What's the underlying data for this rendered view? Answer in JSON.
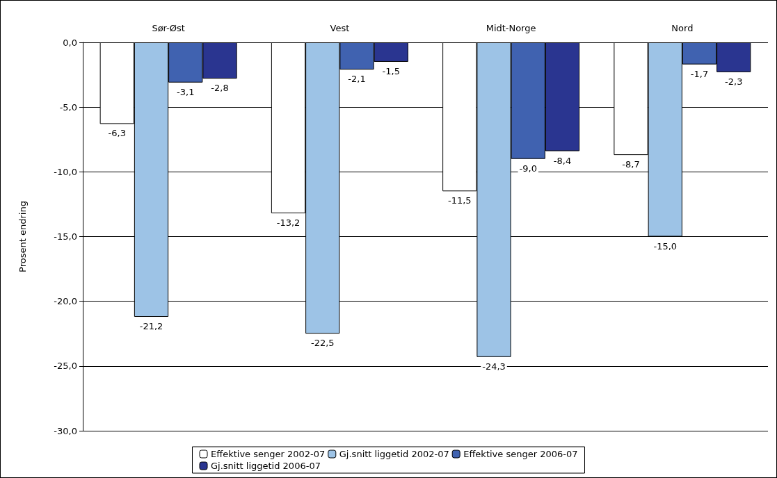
{
  "chart_data": {
    "type": "bar",
    "ylabel": "Prosent endring",
    "categories": [
      "Sør-Øst",
      "Vest",
      "Midt-Norge",
      "Nord"
    ],
    "series": [
      {
        "name": "Effektive senger 2002-07",
        "color": "#ffffff",
        "values": [
          -6.3,
          -13.2,
          -11.5,
          -8.7
        ],
        "value_labels": [
          "-6,3",
          "-13,2",
          "-11,5",
          "-8,7"
        ]
      },
      {
        "name": "Gj.snitt liggetid 2002-07",
        "color": "#9dc3e6",
        "values": [
          -21.2,
          -22.5,
          -24.3,
          -15.0
        ],
        "value_labels": [
          "-21,2",
          "-22,5",
          "-24,3",
          "-15,0"
        ]
      },
      {
        "name": "Effektive senger 2006-07",
        "color": "#4062b0",
        "values": [
          -3.1,
          -2.1,
          -9.0,
          -1.7
        ],
        "value_labels": [
          "-3,1",
          "-2,1",
          "-9,0",
          "-1,7"
        ]
      },
      {
        "name": "Gj.snitt liggetid 2006-07",
        "color": "#2a3590",
        "values": [
          -2.8,
          -1.5,
          -8.4,
          -2.3
        ],
        "value_labels": [
          "-2,8",
          "-1,5",
          "-8,4",
          "-2,3"
        ]
      }
    ],
    "ylim": [
      -30,
      0
    ],
    "yticks": [
      {
        "value": -30,
        "label": "-30,0"
      },
      {
        "value": -25,
        "label": "-25,0"
      },
      {
        "value": -20,
        "label": "-20,0"
      },
      {
        "value": -15,
        "label": "-15,0"
      },
      {
        "value": -10,
        "label": "-10,0"
      },
      {
        "value": -5,
        "label": "-5,0"
      },
      {
        "value": 0,
        "label": "0,0"
      }
    ],
    "grid": "y",
    "legend": "bottom"
  }
}
